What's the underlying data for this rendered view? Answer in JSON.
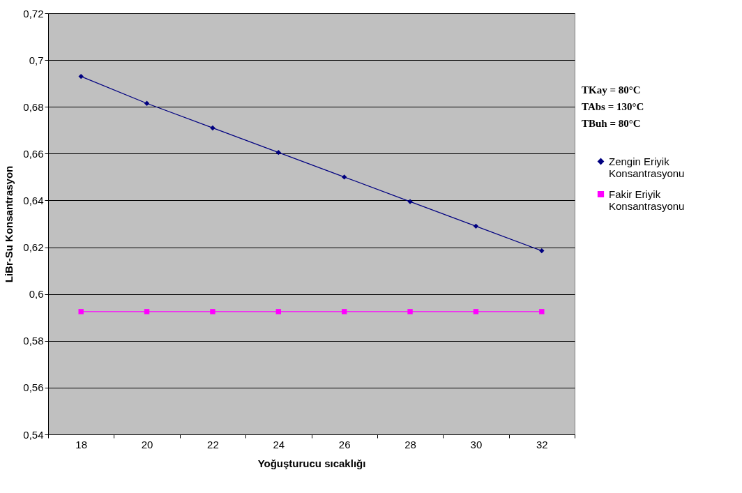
{
  "chart_data": {
    "type": "line",
    "xlabel": "Yoğuşturucu sıcaklığı",
    "ylabel": "LiBr-Su Konsantrasyon",
    "categories": [
      "18",
      "20",
      "22",
      "24",
      "26",
      "28",
      "30",
      "32"
    ],
    "series": [
      {
        "name": "Zengin Eriyik Konsantrasyonu",
        "color": "#000080",
        "marker": "diamond",
        "values": [
          0.693,
          0.6815,
          0.671,
          0.6605,
          0.65,
          0.6395,
          0.629,
          0.6185
        ]
      },
      {
        "name": "Fakir Eriyik Konsantrasyonu",
        "color": "#ff00ff",
        "marker": "square",
        "values": [
          0.5925,
          0.5925,
          0.5925,
          0.5925,
          0.5925,
          0.5925,
          0.5925,
          0.5925
        ]
      }
    ],
    "ylim": [
      0.54,
      0.72
    ],
    "yticks": [
      {
        "value": 0.54,
        "label": "0,54"
      },
      {
        "value": 0.56,
        "label": "0,56"
      },
      {
        "value": 0.58,
        "label": "0,58"
      },
      {
        "value": 0.6,
        "label": "0,6"
      },
      {
        "value": 0.62,
        "label": "0,62"
      },
      {
        "value": 0.64,
        "label": "0,64"
      },
      {
        "value": 0.66,
        "label": "0,66"
      },
      {
        "value": 0.68,
        "label": "0,68"
      },
      {
        "value": 0.7,
        "label": "0,7"
      },
      {
        "value": 0.72,
        "label": "0,72"
      }
    ],
    "annotations": [
      "TKay = 80°C",
      "TAbs = 130°C",
      "TBuh = 80°C"
    ],
    "grid": "y",
    "legend": "right",
    "line_style": "solid"
  }
}
